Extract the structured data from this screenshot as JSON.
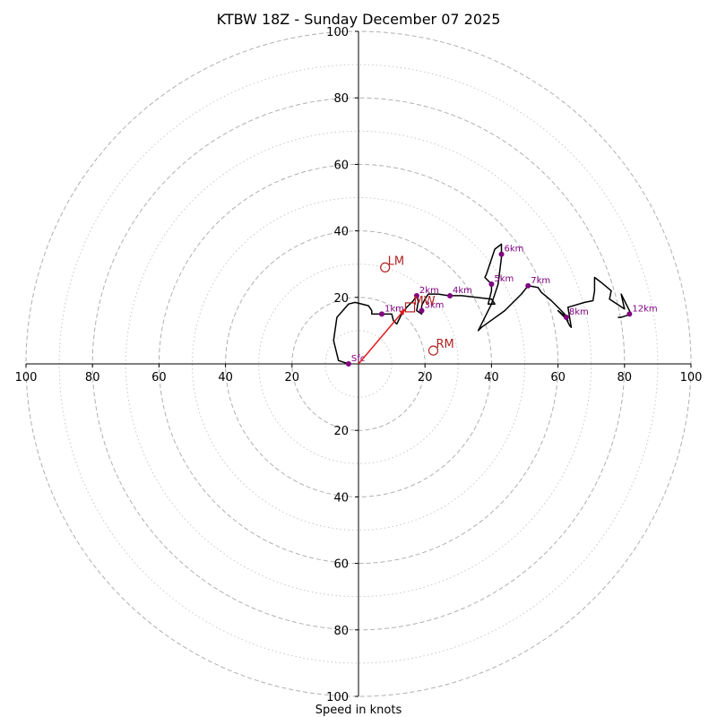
{
  "chart_data": {
    "type": "scatter",
    "subtype": "hodograph",
    "title": "KTBW 18Z - Sunday December 07 2025",
    "xlabel": "Speed in knots",
    "ylabel": "",
    "xlim": [
      -100,
      100
    ],
    "ylim": [
      -100,
      100
    ],
    "range_rings": [
      20,
      40,
      60,
      80,
      100
    ],
    "minor_rings": [
      10,
      30,
      50,
      70,
      90
    ],
    "x_tick_labels": [
      "100",
      "80",
      "60",
      "40",
      "20",
      "20",
      "40",
      "60",
      "80",
      "100"
    ],
    "y_tick_labels": [
      "100",
      "80",
      "60",
      "40",
      "20",
      "20",
      "40",
      "60",
      "80",
      "100"
    ],
    "grid": true,
    "colors": {
      "trace": "#000000",
      "height_markers": "#800080",
      "storm_motion": "#b22222",
      "ring": "#b0b0b0",
      "axis": "#000000"
    },
    "trace": [
      [
        -3,
        0
      ],
      [
        -6,
        1
      ],
      [
        -7.5,
        7
      ],
      [
        -6.5,
        14
      ],
      [
        -3,
        18
      ],
      [
        -1,
        18.5
      ],
      [
        3,
        17.5
      ],
      [
        4,
        16
      ],
      [
        4,
        15
      ],
      [
        7,
        15
      ],
      [
        10,
        15
      ],
      [
        10.5,
        13
      ],
      [
        11.5,
        12
      ],
      [
        13,
        15
      ],
      [
        14.5,
        17
      ],
      [
        16.5,
        19
      ],
      [
        17.5,
        20.5
      ],
      [
        18,
        19
      ],
      [
        17.5,
        16
      ],
      [
        19,
        15
      ],
      [
        19,
        17.5
      ],
      [
        20,
        19.5
      ],
      [
        21,
        21
      ],
      [
        24,
        21
      ],
      [
        27,
        20.5
      ],
      [
        28,
        20.5
      ],
      [
        31,
        20.5
      ],
      [
        40,
        19.5
      ],
      [
        41,
        18
      ],
      [
        39,
        18
      ],
      [
        40,
        22
      ],
      [
        40,
        24
      ],
      [
        38,
        26
      ],
      [
        38.5,
        27
      ],
      [
        41,
        34.5
      ],
      [
        43,
        36
      ],
      [
        43,
        32
      ],
      [
        42,
        24
      ],
      [
        40,
        18
      ],
      [
        36,
        10
      ],
      [
        37,
        11
      ],
      [
        44,
        16
      ],
      [
        49,
        21
      ],
      [
        51,
        23.5
      ],
      [
        54,
        23
      ],
      [
        55,
        21.5
      ],
      [
        58,
        19
      ],
      [
        60,
        17
      ],
      [
        62,
        15
      ],
      [
        63,
        13
      ],
      [
        60,
        16
      ],
      [
        62,
        14.5
      ],
      [
        63.5,
        11.5
      ],
      [
        64,
        11
      ],
      [
        63,
        17
      ],
      [
        68,
        18.5
      ],
      [
        70.5,
        19
      ],
      [
        71,
        22
      ],
      [
        71,
        26
      ],
      [
        73,
        24.5
      ],
      [
        76,
        22
      ],
      [
        75.5,
        19.5
      ],
      [
        80,
        16.5
      ],
      [
        79,
        21
      ],
      [
        82,
        15
      ],
      [
        79,
        14
      ],
      [
        78,
        14
      ]
    ],
    "height_markers": [
      {
        "label": "Sfc",
        "u": -3,
        "v": 0
      },
      {
        "label": "1km",
        "u": 7,
        "v": 15
      },
      {
        "label": "2km",
        "u": 17.5,
        "v": 20.5
      },
      {
        "label": "3km",
        "u": 19,
        "v": 16
      },
      {
        "label": "4km",
        "u": 27.5,
        "v": 20.5
      },
      {
        "label": "5km",
        "u": 40,
        "v": 24
      },
      {
        "label": "6km",
        "u": 43,
        "v": 33
      },
      {
        "label": "7km",
        "u": 51,
        "v": 23.5
      },
      {
        "label": "8km",
        "u": 62.5,
        "v": 14
      },
      {
        "label": "12km",
        "u": 81.5,
        "v": 15
      }
    ],
    "storm_motion": {
      "lm": {
        "label": "LM",
        "u": 8,
        "v": 29
      },
      "rm": {
        "label": "RM",
        "u": 22.5,
        "v": 4
      },
      "mw": {
        "label": "MW",
        "u": 15.5,
        "v": 17
      },
      "shear_vector": {
        "u0": 0,
        "v0": 0,
        "u1": 14,
        "v1": 16.5
      }
    }
  }
}
